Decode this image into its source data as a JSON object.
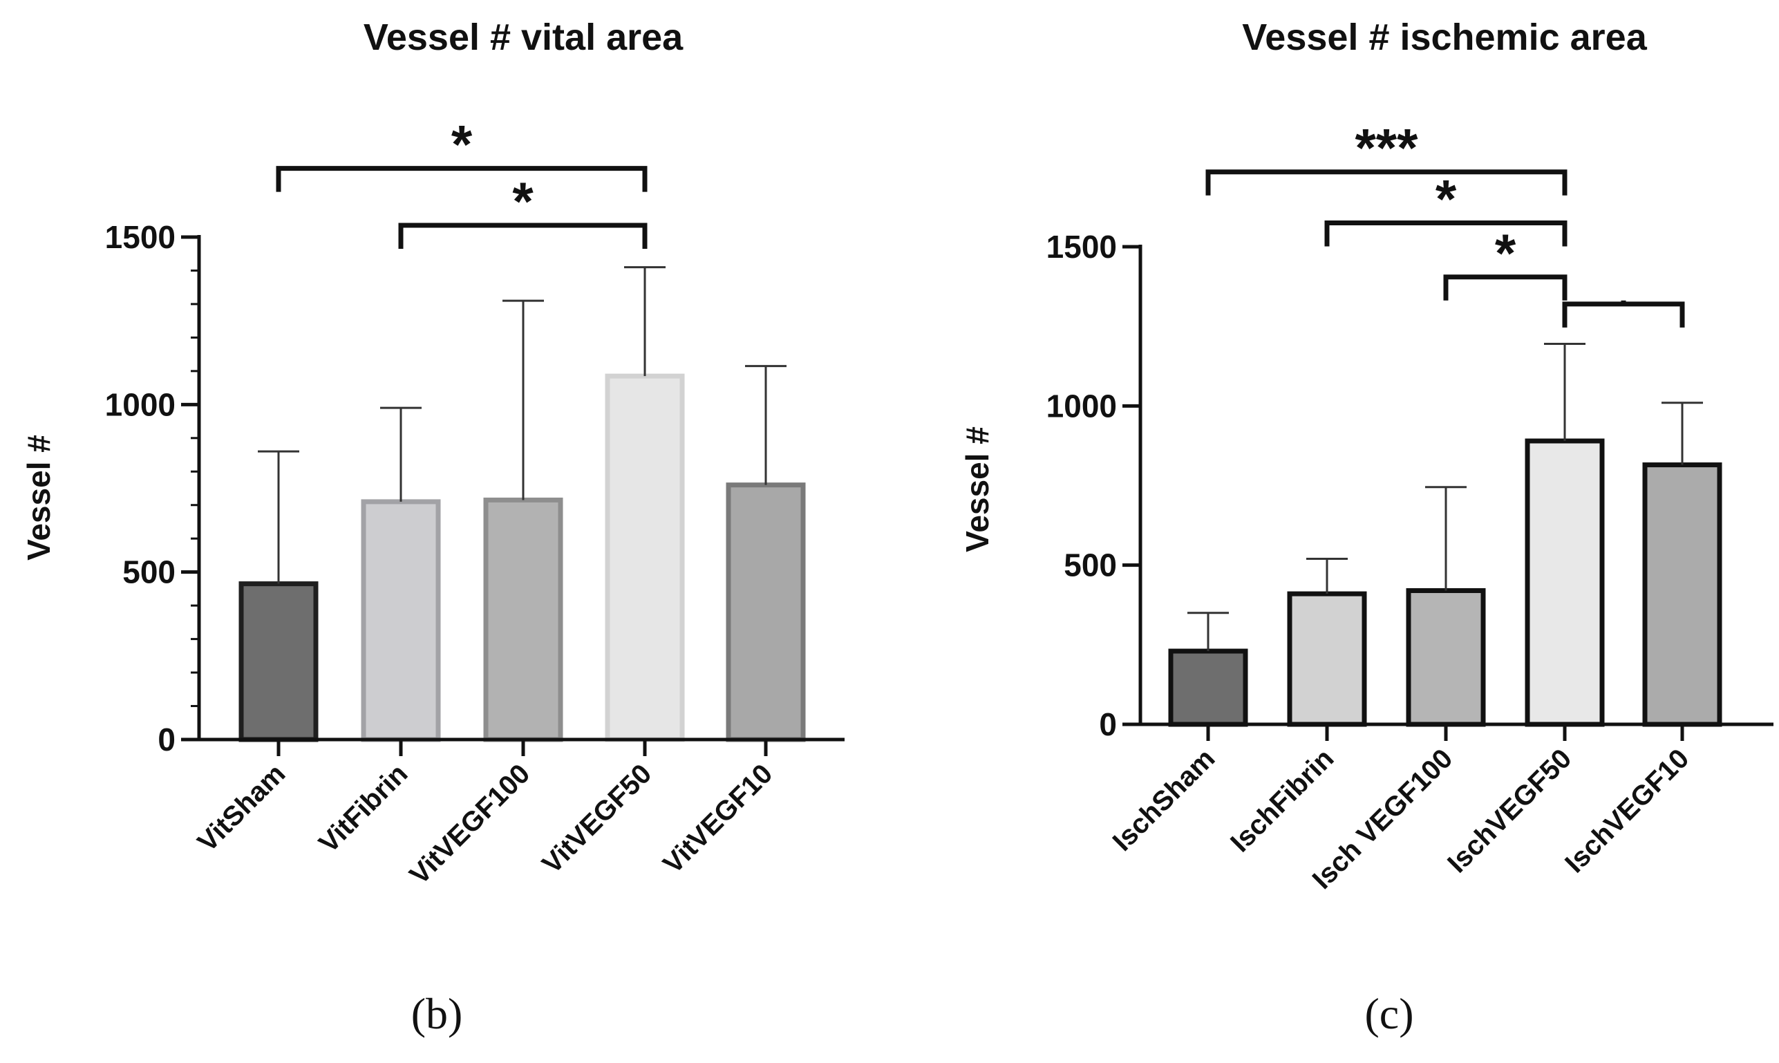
{
  "chart_data": [
    {
      "type": "bar",
      "title": "Vessel # vital area",
      "ylabel": "Vessel #",
      "xlabel": "",
      "ylim": [
        0,
        1500
      ],
      "yticks": [
        0,
        500,
        1000,
        1500
      ],
      "ytick_labels": [
        "0",
        "500",
        "1000",
        "1500"
      ],
      "categories": [
        "VitSham",
        "VitFibrin",
        "VitVEGF100",
        "VitVEGF50",
        "VitVEGF10"
      ],
      "values": [
        465,
        710,
        715,
        1085,
        760
      ],
      "error_upper": [
        860,
        990,
        1310,
        1410,
        1115
      ],
      "bar_fill": [
        "#6e6e6e",
        "#cdcdd0",
        "#b2b2b2",
        "#e6e6e6",
        "#a8a8a8"
      ],
      "bar_stroke": [
        "#1f1f1f",
        "#a2a2a6",
        "#8e8e8e",
        "#d2d2d2",
        "#7a7a7a"
      ],
      "significance": [
        {
          "from": 0,
          "to": 3,
          "label": "*",
          "value": 1705
        },
        {
          "from": 1,
          "to": 3,
          "label": "*",
          "value": 1535
        }
      ],
      "panel_label": "(b)"
    },
    {
      "type": "bar",
      "title": "Vessel # ischemic area",
      "ylabel": "Vessel #",
      "xlabel": "",
      "ylim": [
        0,
        1500
      ],
      "yticks": [
        0,
        500,
        1000,
        1500
      ],
      "ytick_labels": [
        "0",
        "500",
        "1000",
        "1500"
      ],
      "categories": [
        "IschSham",
        "IschFibrin",
        "Isch VEGF100",
        "IschVEGF50",
        "IschVEGF10"
      ],
      "values": [
        230,
        410,
        420,
        890,
        815
      ],
      "error_upper": [
        350,
        520,
        745,
        1195,
        1010
      ],
      "bar_fill": [
        "#6e6e6e",
        "#d2d2d2",
        "#b5b5b5",
        "#e8e8e8",
        "#ababab"
      ],
      "bar_stroke": [
        "#111111",
        "#111111",
        "#111111",
        "#111111",
        "#111111"
      ],
      "significance": [
        {
          "from": 0,
          "to": 3,
          "label": "***",
          "value": 1735
        },
        {
          "from": 1,
          "to": 3,
          "label": "*",
          "value": 1575
        },
        {
          "from": 2,
          "to": 3,
          "label": "*",
          "value": 1405
        },
        {
          "from": 3,
          "to": 4,
          "label": "",
          "value": 1320
        }
      ],
      "panel_label": "(c)"
    }
  ]
}
